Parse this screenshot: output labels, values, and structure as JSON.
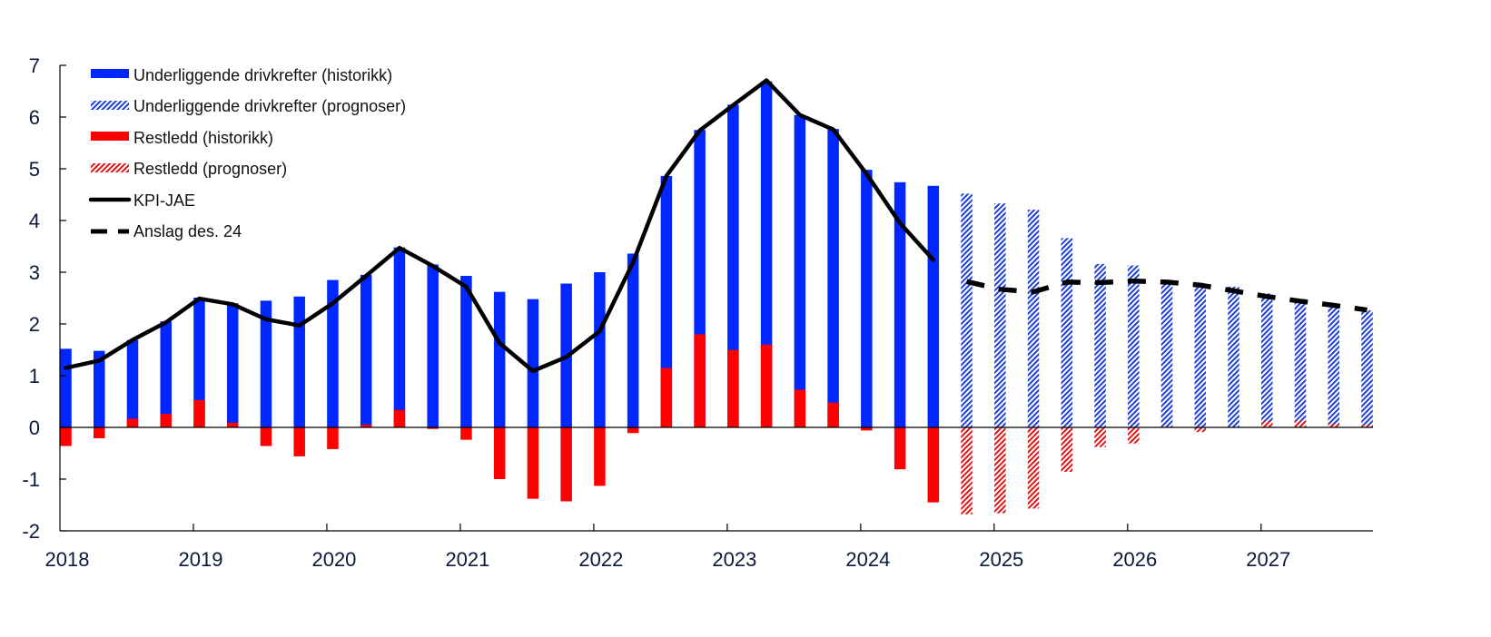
{
  "chart_data": {
    "type": "bar",
    "title": "",
    "xlabel": "",
    "ylabel": "",
    "ylim": [
      -2,
      7
    ],
    "yticks": [
      "-2",
      "-1",
      "0",
      "1",
      "2",
      "3",
      "4",
      "5",
      "6",
      "7"
    ],
    "xticks": [
      "2018",
      "2019",
      "2020",
      "2021",
      "2022",
      "2023",
      "2024",
      "2025",
      "2026",
      "2027"
    ],
    "grid": false,
    "legend_position": "top-left",
    "colors": {
      "blue": "#0027ff",
      "red": "#ff0000",
      "line": "#000000"
    },
    "categories": [
      "2018Q1",
      "2018Q2",
      "2018Q3",
      "2018Q4",
      "2019Q1",
      "2019Q2",
      "2019Q3",
      "2019Q4",
      "2020Q1",
      "2020Q2",
      "2020Q3",
      "2020Q4",
      "2021Q1",
      "2021Q2",
      "2021Q3",
      "2021Q4",
      "2022Q1",
      "2022Q2",
      "2022Q3",
      "2022Q4",
      "2023Q1",
      "2023Q2",
      "2023Q3",
      "2023Q4",
      "2024Q1",
      "2024Q2",
      "2024Q3",
      "2024Q4",
      "2025Q1",
      "2025Q2",
      "2025Q3",
      "2025Q4",
      "2026Q1",
      "2026Q2",
      "2026Q3",
      "2026Q4",
      "2027Q1",
      "2027Q2",
      "2027Q3",
      "2027Q4"
    ],
    "forecast_start_index": 27,
    "series": [
      {
        "name": "Underliggende drivkrefter (historikk)",
        "kind": "bar-solid",
        "color": "#0027ff",
        "values": [
          1.52,
          1.48,
          1.69,
          2.05,
          2.51,
          2.4,
          2.45,
          2.53,
          2.85,
          2.95,
          3.48,
          3.15,
          2.93,
          2.62,
          2.48,
          2.78,
          3.0,
          3.36,
          4.86,
          5.75,
          6.24,
          6.69,
          6.04,
          5.77,
          4.98,
          4.74,
          4.67,
          null,
          null,
          null,
          null,
          null,
          null,
          null,
          null,
          null,
          null,
          null,
          null,
          null
        ]
      },
      {
        "name": "Underliggende drivkrefter (prognoser)",
        "kind": "bar-hatched",
        "color": "#0027ff",
        "values": [
          null,
          null,
          null,
          null,
          null,
          null,
          null,
          null,
          null,
          null,
          null,
          null,
          null,
          null,
          null,
          null,
          null,
          null,
          null,
          null,
          null,
          null,
          null,
          null,
          null,
          null,
          null,
          4.52,
          4.33,
          4.21,
          3.66,
          3.16,
          3.13,
          2.8,
          2.78,
          2.72,
          2.59,
          2.48,
          2.38,
          2.26
        ]
      },
      {
        "name": "Restledd (historikk)",
        "kind": "bar-solid",
        "color": "#ff0000",
        "values": [
          -0.36,
          -0.21,
          0.17,
          0.26,
          0.53,
          0.09,
          -0.36,
          -0.56,
          -0.42,
          0.05,
          0.34,
          -0.03,
          -0.24,
          -1.0,
          -1.38,
          -1.43,
          -1.13,
          -0.11,
          1.15,
          1.8,
          1.5,
          1.6,
          0.73,
          0.48,
          -0.06,
          -0.81,
          -1.45,
          null,
          null,
          null,
          null,
          null,
          null,
          null,
          null,
          null,
          null,
          null,
          null,
          null
        ]
      },
      {
        "name": "Restledd (prognoser)",
        "kind": "bar-hatched",
        "color": "#ff0000",
        "values": [
          null,
          null,
          null,
          null,
          null,
          null,
          null,
          null,
          null,
          null,
          null,
          null,
          null,
          null,
          null,
          null,
          null,
          null,
          null,
          null,
          null,
          null,
          null,
          null,
          null,
          null,
          null,
          -1.68,
          -1.66,
          -1.57,
          -0.86,
          -0.38,
          -0.31,
          0.02,
          -0.09,
          0.0,
          0.12,
          0.13,
          0.07,
          0.05
        ]
      },
      {
        "name": "KPI-JAE",
        "kind": "line-solid",
        "color": "#000000",
        "values": [
          1.15,
          1.29,
          1.69,
          2.03,
          2.49,
          2.38,
          2.09,
          1.97,
          2.4,
          2.93,
          3.47,
          3.12,
          2.72,
          1.63,
          1.09,
          1.36,
          1.86,
          3.19,
          4.86,
          5.74,
          6.23,
          6.71,
          6.04,
          5.76,
          4.9,
          3.95,
          3.24,
          null,
          null,
          null,
          null,
          null,
          null,
          null,
          null,
          null,
          null,
          null,
          null,
          null
        ]
      },
      {
        "name": "Anslag des. 24",
        "kind": "line-dashed",
        "color": "#000000",
        "values": [
          null,
          null,
          null,
          null,
          null,
          null,
          null,
          null,
          null,
          null,
          null,
          null,
          null,
          null,
          null,
          null,
          null,
          null,
          null,
          null,
          null,
          null,
          null,
          null,
          null,
          null,
          null,
          2.82,
          2.67,
          2.62,
          2.81,
          2.8,
          2.83,
          2.81,
          2.75,
          2.64,
          2.53,
          2.44,
          2.36,
          2.27
        ]
      }
    ],
    "legend": [
      {
        "label": "Underliggende drivkrefter (historikk)",
        "swatch": "blue-solid"
      },
      {
        "label": "Underliggende drivkrefter (prognoser)",
        "swatch": "blue-hatched"
      },
      {
        "label": "Restledd (historikk)",
        "swatch": "red-solid"
      },
      {
        "label": "Restledd (prognoser)",
        "swatch": "red-hatched"
      },
      {
        "label": "KPI-JAE",
        "swatch": "line-solid"
      },
      {
        "label": "Anslag des. 24",
        "swatch": "line-dashed"
      }
    ]
  }
}
